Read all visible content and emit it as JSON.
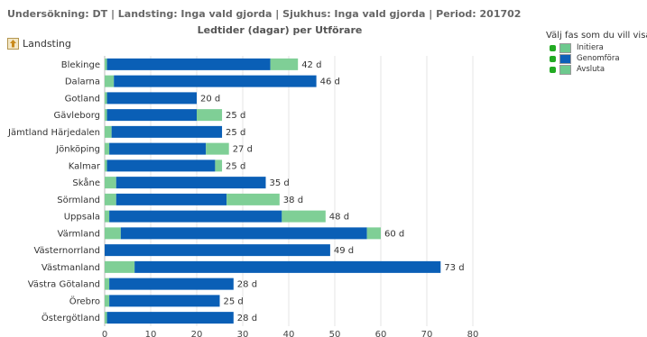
{
  "header": "Undersökning: DT  |  Landsting: Inga vald gjorda  |  Sjukhus: Inga vald gjorda  |  Period: 201702",
  "back_label": "Landsting",
  "legend": {
    "title": "Välj fas som du vill visa:",
    "items": [
      {
        "label": "Initiera",
        "color": "#6dc98e"
      },
      {
        "label": "Genomföra",
        "color": "#0d5fb8"
      },
      {
        "label": "Avsluta",
        "color": "#6dc98e"
      }
    ]
  },
  "colors": {
    "initiera": "#7fcf96",
    "genomfora": "#0a5fb6",
    "grid": "#e4e4e4"
  },
  "chart_data": {
    "type": "bar",
    "orientation": "horizontal",
    "stacked": true,
    "title": "Ledtider (dagar) per Utförare",
    "xlabel": "",
    "ylabel": "",
    "xlim": [
      0,
      80
    ],
    "xticks": [
      0,
      10,
      20,
      30,
      40,
      50,
      60,
      70,
      80
    ],
    "grid": true,
    "categories": [
      "Blekinge",
      "Dalarna",
      "Gotland",
      "Gävleborg",
      "Jämtland Härjedalen",
      "Jönköping",
      "Kalmar",
      "Skåne",
      "Sörmland",
      "Uppsala",
      "Värmland",
      "Västernorrland",
      "Västmanland",
      "Västra Götaland",
      "Örebro",
      "Östergötland"
    ],
    "series": [
      {
        "name": "Initiera",
        "values": [
          0.5,
          2,
          0.5,
          0.5,
          1.5,
          1,
          0.5,
          2.5,
          2.5,
          1,
          3.5,
          0,
          6.5,
          1,
          1,
          0.5
        ]
      },
      {
        "name": "Genomföra",
        "values": [
          35.5,
          44,
          19.5,
          19.5,
          24,
          21,
          23.5,
          32.5,
          24,
          37.5,
          53.5,
          49,
          66.5,
          27,
          24,
          27.5
        ]
      },
      {
        "name": "Avsluta",
        "values": [
          6,
          0,
          0,
          5.5,
          0,
          5,
          1.5,
          0,
          11.5,
          9.5,
          3,
          0,
          0,
          0,
          0,
          0
        ]
      }
    ],
    "data_labels": [
      "42 d",
      "46 d",
      "20 d",
      "25 d",
      "25 d",
      "27 d",
      "25 d",
      "35 d",
      "38 d",
      "48 d",
      "60 d",
      "49 d",
      "73 d",
      "28 d",
      "25 d",
      "28 d"
    ]
  }
}
